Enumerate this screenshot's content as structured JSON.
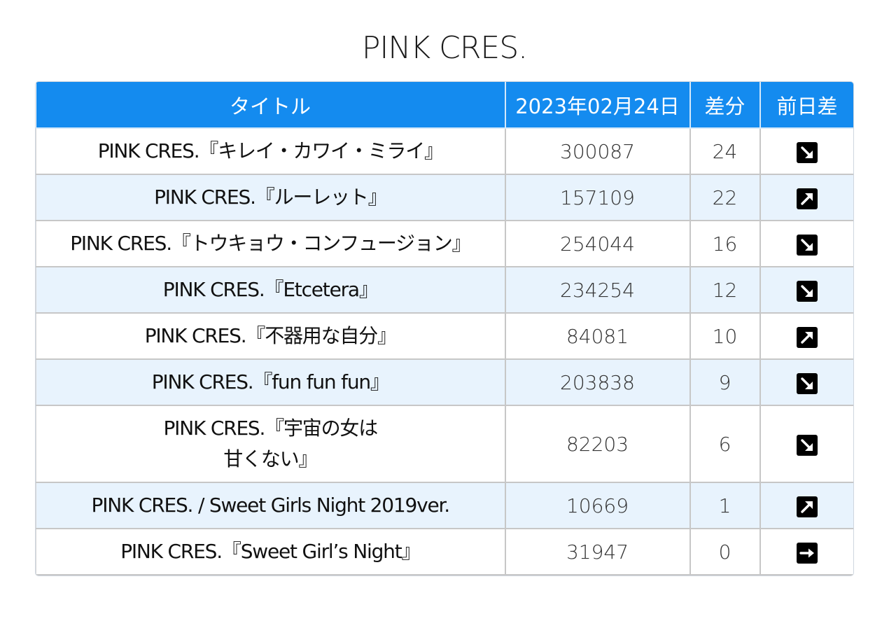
{
  "page": {
    "title": "PINK CRES."
  },
  "table": {
    "headers": [
      "タイトル",
      "2023年02月24日",
      "差分",
      "前日差"
    ],
    "rows": [
      {
        "title": "PINK CRES.『キレイ・カワイ・ミライ』",
        "count": "300087",
        "diff": "24",
        "trend": "down-icon"
      },
      {
        "title": "PINK CRES.『ルーレット』",
        "count": "157109",
        "diff": "22",
        "trend": "up-icon"
      },
      {
        "title": "PINK CRES.『トウキョウ・コンフュージョン』",
        "count": "254044",
        "diff": "16",
        "trend": "down-icon"
      },
      {
        "title": "PINK CRES.『Etcetera』",
        "count": "234254",
        "diff": "12",
        "trend": "down-icon"
      },
      {
        "title": "PINK CRES.『不器用な自分』",
        "count": "84081",
        "diff": "10",
        "trend": "up-icon"
      },
      {
        "title": "PINK CRES.『fun fun fun』",
        "count": "203838",
        "diff": "9",
        "trend": "down-icon"
      },
      {
        "title": "PINK CRES.『宇宙の女は\n甘くない』",
        "count": "82203",
        "diff": "6",
        "trend": "down-icon"
      },
      {
        "title": "PINK CRES. / Sweet Girls Night 2019ver.",
        "count": "10669",
        "diff": "1",
        "trend": "up-icon"
      },
      {
        "title": "PINK CRES.『Sweet Girl’s Night』",
        "count": "31947",
        "diff": "0",
        "trend": "flat-icon"
      }
    ]
  },
  "colors": {
    "header_bg": "#148bef",
    "stripe_bg": "#e8f3fd",
    "icon_bg": "#000000"
  }
}
